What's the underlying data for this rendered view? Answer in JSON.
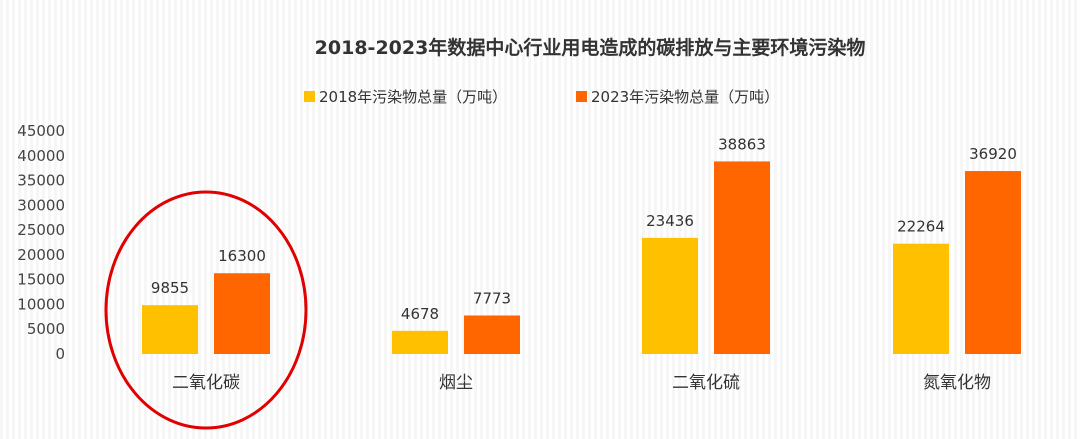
{
  "chart_data": {
    "type": "bar",
    "title": "2018-2023年数据中心行业用电造成的碳排放与主要环境污染物",
    "categories": [
      "二氧化碳",
      "烟尘",
      "二氧化硫",
      "氮氧化物"
    ],
    "series": [
      {
        "name": "2018年污染物总量（万吨）",
        "color": "#FFC000",
        "values": [
          9855,
          4678,
          23436,
          22264
        ]
      },
      {
        "name": "2023年污染物总量（万吨）",
        "color": "#FF6600",
        "values": [
          16300,
          7773,
          38863,
          36920
        ]
      }
    ],
    "yticks": [
      "0",
      "5000",
      "10000",
      "15000",
      "20000",
      "25000",
      "30000",
      "35000",
      "40000",
      "45000"
    ],
    "ylim": [
      0,
      45000
    ],
    "grid": false,
    "legend_position": "top-center",
    "highlight": {
      "category": "二氧化碳",
      "color": "#E00000"
    }
  }
}
